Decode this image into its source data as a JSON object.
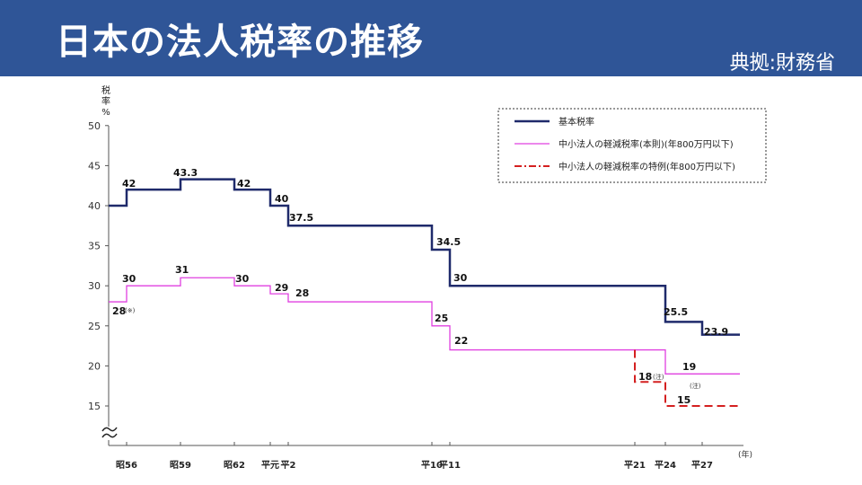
{
  "header": {
    "title": "日本の法人税率の推移",
    "source": "典拠:財務省"
  },
  "colors": {
    "header_bg": "#2f5597",
    "basic": "#1f2a6b",
    "sme_main": "#e040e0",
    "sme_special": "#d42020"
  },
  "chart_data": {
    "type": "line",
    "step": true,
    "ylabel": "税率%",
    "xunit": "(年)",
    "ylim": [
      15,
      50
    ],
    "yticks": [
      "50",
      "45",
      "40",
      "35",
      "30",
      "25",
      "20",
      "15"
    ],
    "axis_break": true,
    "grid": false,
    "legend_position": "top-right",
    "xticks": [
      "昭56",
      "昭59",
      "昭62",
      "平元",
      "平2",
      "平10",
      "平11",
      "平21",
      "平24",
      "平27"
    ],
    "series": [
      {
        "name": "基本税率",
        "style": "solid",
        "points": [
          [
            "start",
            40
          ],
          [
            "昭56",
            42
          ],
          [
            "昭59",
            43.3
          ],
          [
            "昭62",
            42
          ],
          [
            "平元",
            40
          ],
          [
            "平2",
            37.5
          ],
          [
            "平10",
            34.5
          ],
          [
            "平11",
            30
          ],
          [
            "平24",
            25.5
          ],
          [
            "平27",
            23.9
          ],
          [
            "end",
            23.9
          ]
        ],
        "labels": [
          "42",
          "43.3",
          "42",
          "40",
          "37.5",
          "34.5",
          "30",
          "25.5",
          "23.9"
        ]
      },
      {
        "name": "中小法人の軽減税率(本則)(年800万円以下)",
        "style": "solid",
        "points": [
          [
            "start",
            28
          ],
          [
            "昭56",
            30
          ],
          [
            "昭59",
            31
          ],
          [
            "昭62",
            30
          ],
          [
            "平元",
            29
          ],
          [
            "平2",
            28
          ],
          [
            "平10",
            25
          ],
          [
            "平11",
            22
          ],
          [
            "平24",
            19
          ],
          [
            "end",
            19
          ]
        ],
        "labels": [
          "28",
          "30",
          "31",
          "30",
          "29",
          "28",
          "25",
          "22",
          "19"
        ]
      },
      {
        "name": "中小法人の軽減税率の特例(年800万円以下)",
        "style": "dashed",
        "points": [
          [
            "平21",
            22
          ],
          [
            "平21",
            18
          ],
          [
            "平24",
            15
          ],
          [
            "end",
            15
          ]
        ],
        "labels": [
          "18",
          "15"
        ]
      }
    ],
    "annotations": [
      "(※)",
      "(注)",
      "(注)"
    ]
  }
}
